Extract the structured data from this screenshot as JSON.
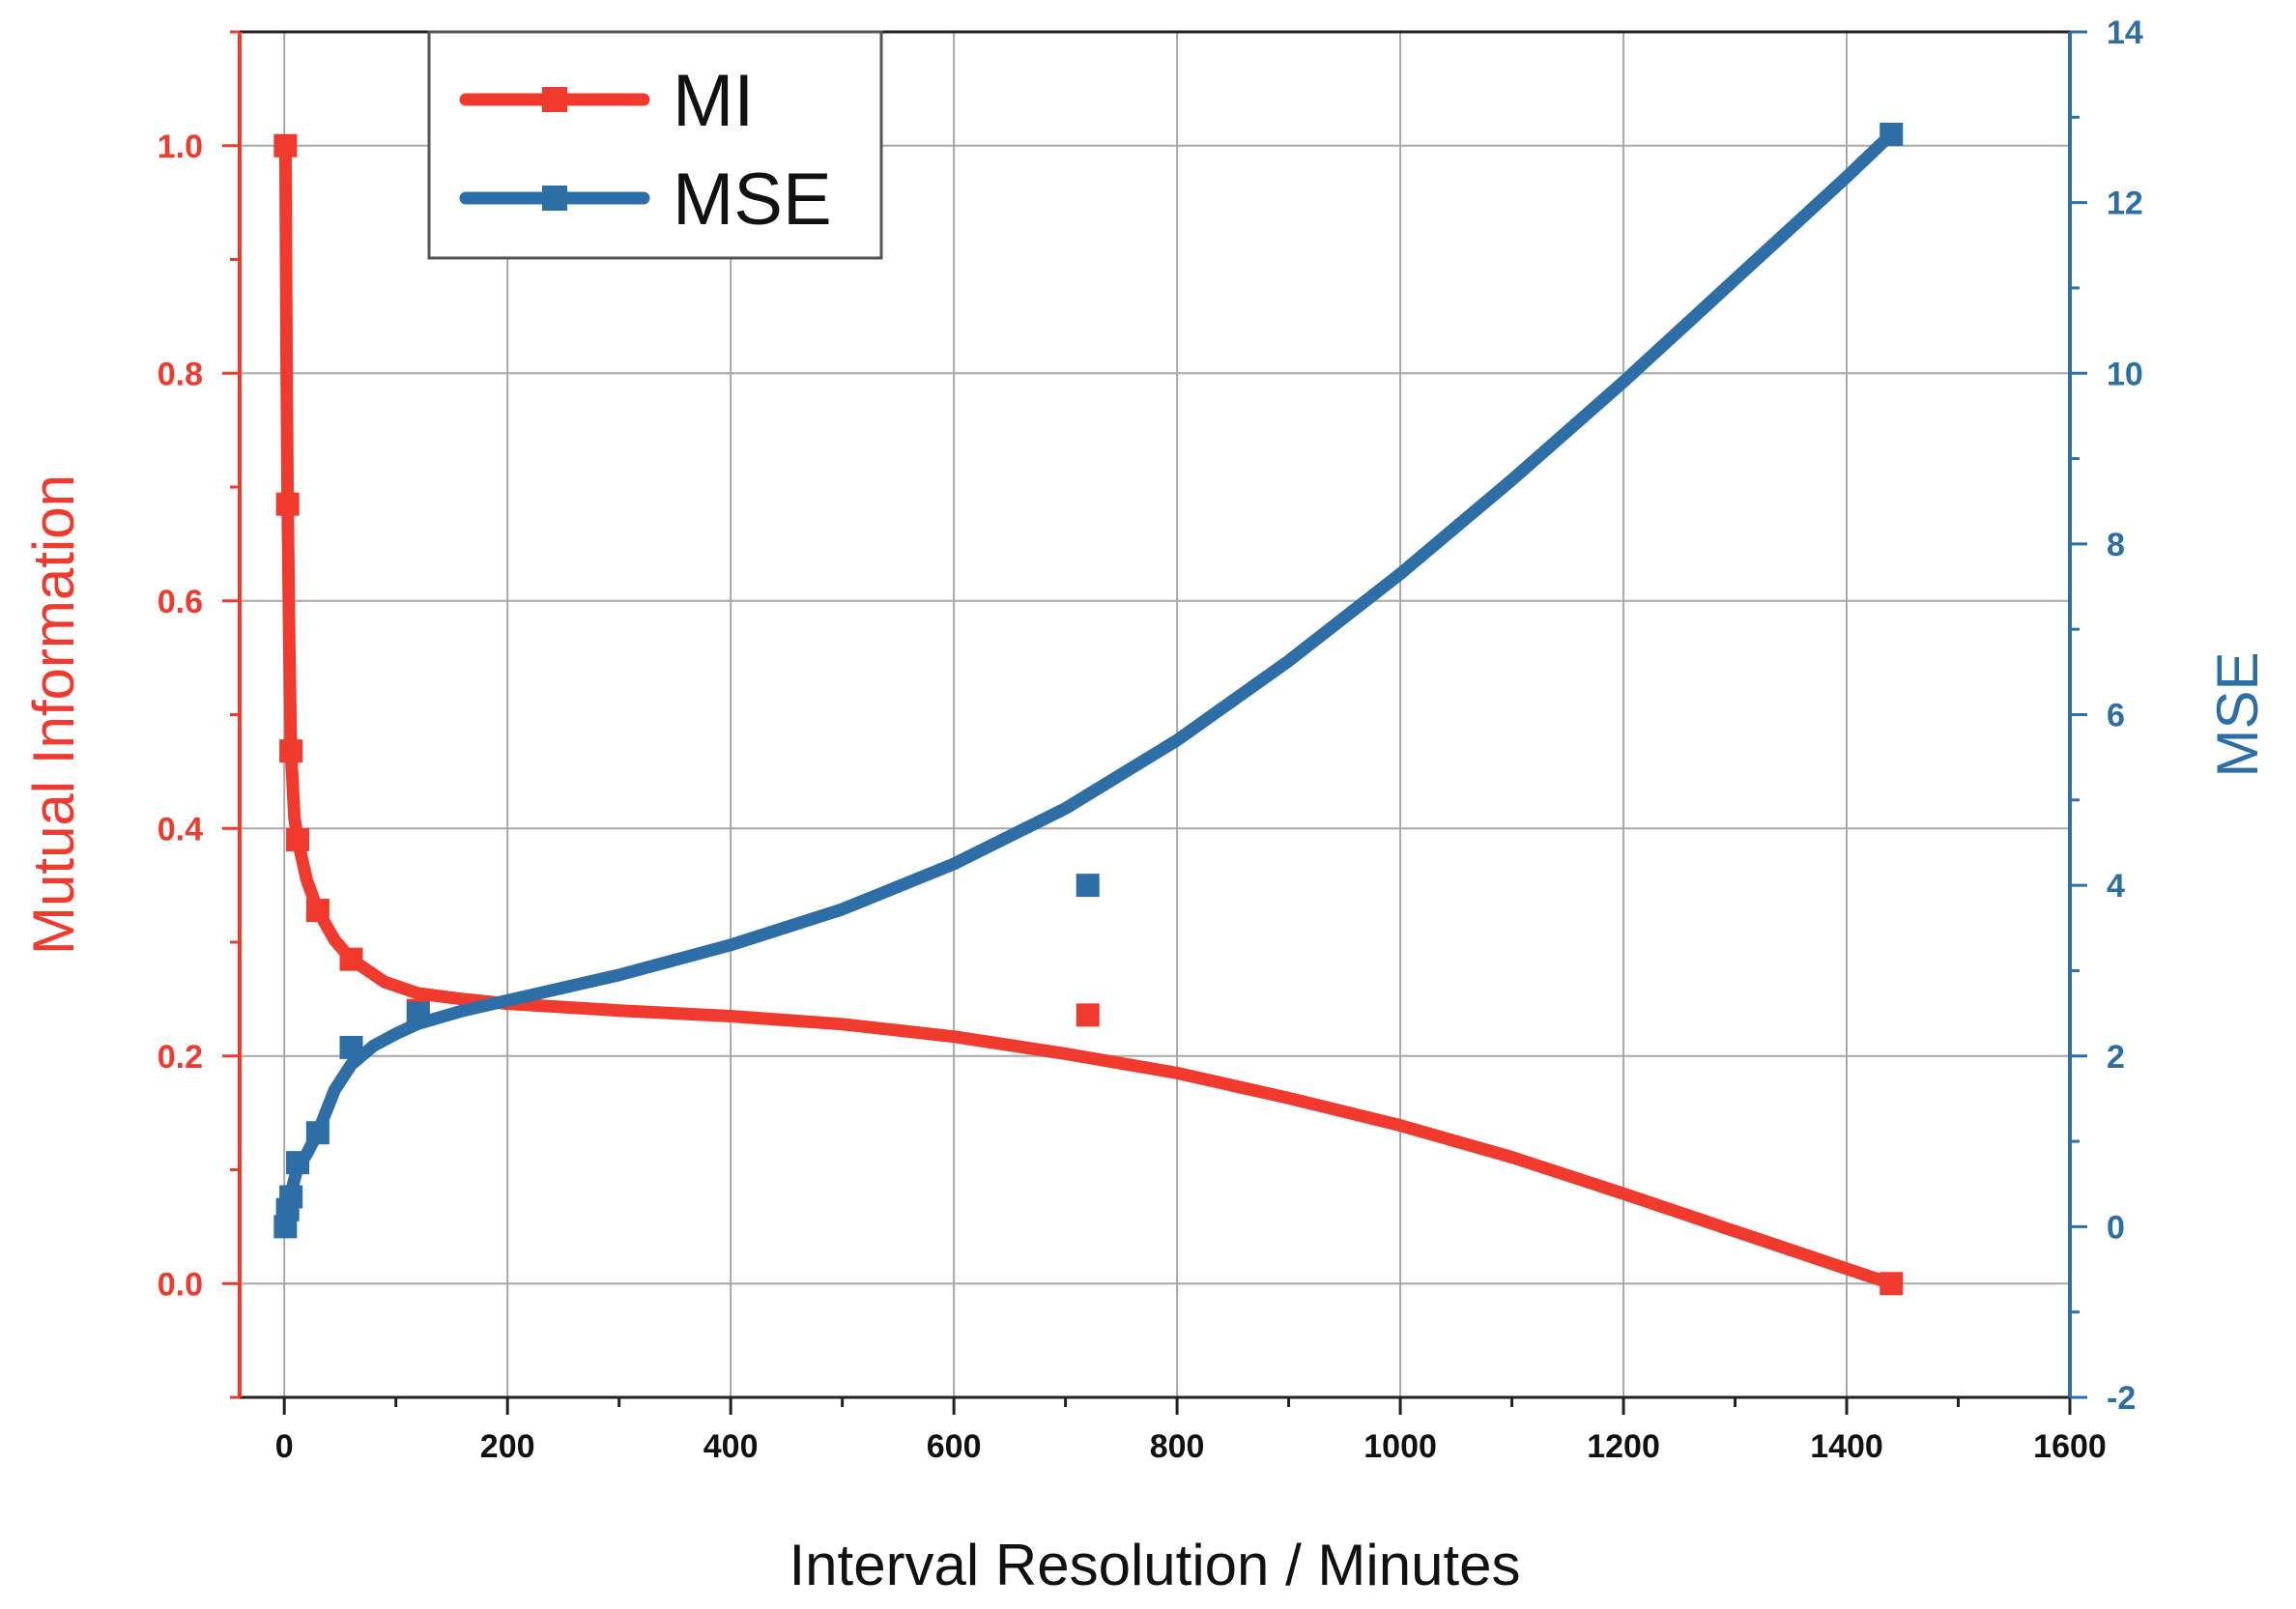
{
  "chart_data": {
    "type": "line",
    "title": "",
    "xlabel": "Interval Resolution / Minutes",
    "ylabel": "Mutual Information",
    "y2label": "MSE",
    "xlim": [
      -40,
      1600
    ],
    "ylim": [
      -0.1,
      1.1
    ],
    "y2lim": [
      -2,
      14
    ],
    "x_ticks": [
      "0",
      "200",
      "400",
      "600",
      "800",
      "1000",
      "1200",
      "1400",
      "1600"
    ],
    "y_ticks": [
      "0.0",
      "0.2",
      "0.4",
      "0.6",
      "0.8",
      "1.0"
    ],
    "y2_ticks": [
      "-2",
      "0",
      "2",
      "4",
      "6",
      "8",
      "10",
      "12",
      "14"
    ],
    "grid": true,
    "legend_position": "top-left",
    "series": [
      {
        "name": "MI",
        "color": "#f03a2e",
        "axis": "left",
        "points": [
          {
            "x": 1,
            "y": 1.0
          },
          {
            "x": 3,
            "y": 0.685
          },
          {
            "x": 6,
            "y": 0.468
          },
          {
            "x": 12,
            "y": 0.39
          },
          {
            "x": 30,
            "y": 0.328
          },
          {
            "x": 60,
            "y": 0.285
          },
          {
            "x": 120,
            "y": 0.24
          },
          {
            "x": 720,
            "y": 0.236
          },
          {
            "x": 1440,
            "y": 0.0
          }
        ],
        "fit": [
          {
            "x": 1,
            "y": 1.0
          },
          {
            "x": 2,
            "y": 0.82
          },
          {
            "x": 3,
            "y": 0.685
          },
          {
            "x": 4.5,
            "y": 0.56
          },
          {
            "x": 6,
            "y": 0.468
          },
          {
            "x": 9,
            "y": 0.41
          },
          {
            "x": 12,
            "y": 0.39
          },
          {
            "x": 20,
            "y": 0.355
          },
          {
            "x": 30,
            "y": 0.328
          },
          {
            "x": 45,
            "y": 0.302
          },
          {
            "x": 60,
            "y": 0.285
          },
          {
            "x": 90,
            "y": 0.265
          },
          {
            "x": 120,
            "y": 0.255
          },
          {
            "x": 160,
            "y": 0.25
          },
          {
            "x": 200,
            "y": 0.246
          },
          {
            "x": 300,
            "y": 0.24
          },
          {
            "x": 400,
            "y": 0.235
          },
          {
            "x": 500,
            "y": 0.228
          },
          {
            "x": 600,
            "y": 0.217
          },
          {
            "x": 700,
            "y": 0.202
          },
          {
            "x": 800,
            "y": 0.185
          },
          {
            "x": 900,
            "y": 0.163
          },
          {
            "x": 1000,
            "y": 0.139
          },
          {
            "x": 1100,
            "y": 0.111
          },
          {
            "x": 1200,
            "y": 0.079
          },
          {
            "x": 1300,
            "y": 0.046
          },
          {
            "x": 1400,
            "y": 0.013
          },
          {
            "x": 1440,
            "y": 0.0
          }
        ]
      },
      {
        "name": "MSE",
        "color": "#2e6ea6",
        "axis": "right",
        "points": [
          {
            "x": 1,
            "y": 0.0
          },
          {
            "x": 3,
            "y": 0.2
          },
          {
            "x": 6,
            "y": 0.35
          },
          {
            "x": 12,
            "y": 0.75
          },
          {
            "x": 30,
            "y": 1.1
          },
          {
            "x": 60,
            "y": 2.1
          },
          {
            "x": 120,
            "y": 2.5
          },
          {
            "x": 720,
            "y": 4.0
          },
          {
            "x": 1440,
            "y": 12.8
          }
        ],
        "fit": [
          {
            "x": 1,
            "y": 0.1
          },
          {
            "x": 6,
            "y": 0.4
          },
          {
            "x": 12,
            "y": 0.7
          },
          {
            "x": 20,
            "y": 0.85
          },
          {
            "x": 30,
            "y": 1.1
          },
          {
            "x": 45,
            "y": 1.6
          },
          {
            "x": 60,
            "y": 1.9
          },
          {
            "x": 80,
            "y": 2.12
          },
          {
            "x": 100,
            "y": 2.26
          },
          {
            "x": 120,
            "y": 2.38
          },
          {
            "x": 160,
            "y": 2.53
          },
          {
            "x": 200,
            "y": 2.65
          },
          {
            "x": 300,
            "y": 2.95
          },
          {
            "x": 400,
            "y": 3.3
          },
          {
            "x": 500,
            "y": 3.72
          },
          {
            "x": 600,
            "y": 4.25
          },
          {
            "x": 700,
            "y": 4.9
          },
          {
            "x": 800,
            "y": 5.7
          },
          {
            "x": 900,
            "y": 6.63
          },
          {
            "x": 1000,
            "y": 7.65
          },
          {
            "x": 1100,
            "y": 8.75
          },
          {
            "x": 1200,
            "y": 9.9
          },
          {
            "x": 1300,
            "y": 11.1
          },
          {
            "x": 1400,
            "y": 12.3
          },
          {
            "x": 1440,
            "y": 12.8
          }
        ]
      }
    ]
  }
}
